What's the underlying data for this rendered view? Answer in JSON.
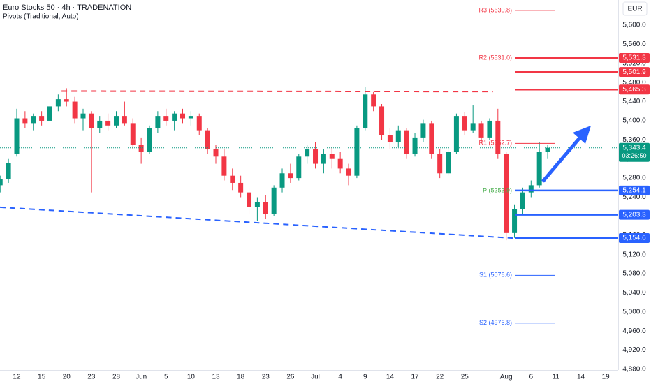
{
  "chart_data": {
    "type": "candlestick",
    "title": "Euro Stocks 50 · 4h · TRADENATION",
    "subtitle": "Pivots (Traditional, Auto)",
    "currency": "EUR",
    "up_color": "#089981",
    "down_color": "#f23645",
    "grid": false,
    "xlim": [
      -2.02,
      72.5
    ],
    "ylim": [
      4878.5,
      5652.6
    ],
    "xticks": [
      {
        "value": 0,
        "label": "12"
      },
      {
        "value": 3,
        "label": "15"
      },
      {
        "value": 6,
        "label": "20"
      },
      {
        "value": 9,
        "label": "23"
      },
      {
        "value": 12,
        "label": "28"
      },
      {
        "value": 15,
        "label": "Jun"
      },
      {
        "value": 18,
        "label": "5"
      },
      {
        "value": 21,
        "label": "10"
      },
      {
        "value": 24,
        "label": "13"
      },
      {
        "value": 27,
        "label": "18"
      },
      {
        "value": 30,
        "label": "23"
      },
      {
        "value": 33,
        "label": "26"
      },
      {
        "value": 36,
        "label": "Jul"
      },
      {
        "value": 39,
        "label": "4"
      },
      {
        "value": 42,
        "label": "9"
      },
      {
        "value": 45,
        "label": "14"
      },
      {
        "value": 48,
        "label": "17"
      },
      {
        "value": 51,
        "label": "22"
      },
      {
        "value": 54,
        "label": "25"
      },
      {
        "value": 59,
        "label": "Aug"
      },
      {
        "value": 62,
        "label": "6"
      },
      {
        "value": 65,
        "label": "11"
      },
      {
        "value": 68,
        "label": "14"
      },
      {
        "value": 71,
        "label": "19"
      }
    ],
    "yticks": [
      {
        "value": 5600,
        "label": "5,600.0"
      },
      {
        "value": 5560,
        "label": "5,560.0"
      },
      {
        "value": 5520,
        "label": "5,520.0"
      },
      {
        "value": 5480,
        "label": "5,480.0"
      },
      {
        "value": 5440,
        "label": "5,440.0"
      },
      {
        "value": 5400,
        "label": "5,400.0"
      },
      {
        "value": 5360,
        "label": "5,360.0"
      },
      {
        "value": 5320,
        "label": "5,320.0"
      },
      {
        "value": 5280,
        "label": "5,280.0"
      },
      {
        "value": 5240,
        "label": "5,240.0"
      },
      {
        "value": 5200,
        "label": "5,200.0"
      },
      {
        "value": 5160,
        "label": "5,160.0"
      },
      {
        "value": 5120,
        "label": "5,120.0"
      },
      {
        "value": 5080,
        "label": "5,080.0"
      },
      {
        "value": 5040,
        "label": "5,040.0"
      },
      {
        "value": 5000,
        "label": "5,000.0"
      },
      {
        "value": 4960,
        "label": "4,960.0"
      },
      {
        "value": 4920,
        "label": "4,920.0"
      },
      {
        "value": 4880,
        "label": "4,880.0"
      }
    ],
    "x": [
      -2,
      -1,
      0,
      1,
      2,
      3,
      4,
      5,
      6,
      7,
      8,
      9,
      10,
      11,
      12,
      13,
      14,
      15,
      16,
      17,
      18,
      19,
      20,
      21,
      22,
      23,
      24,
      25,
      26,
      27,
      28,
      29,
      30,
      31,
      32,
      33,
      34,
      35,
      36,
      37,
      38,
      39,
      40,
      41,
      42,
      43,
      44,
      45,
      46,
      47,
      48,
      49,
      50,
      51,
      52,
      53,
      54,
      55,
      56,
      57,
      58,
      59,
      60,
      61,
      62,
      63,
      64
    ],
    "open": [
      5265,
      5278,
      5330,
      5405,
      5395,
      5410,
      5400,
      5430,
      5445,
      5440,
      5405,
      5415,
      5385,
      5400,
      5390,
      5410,
      5395,
      5350,
      5335,
      5385,
      5410,
      5400,
      5415,
      5405,
      5410,
      5380,
      5340,
      5325,
      5285,
      5270,
      5250,
      5220,
      5230,
      5205,
      5260,
      5290,
      5280,
      5325,
      5340,
      5310,
      5330,
      5320,
      5300,
      5285,
      5385,
      5455,
      5430,
      5370,
      5355,
      5380,
      5330,
      5365,
      5395,
      5330,
      5290,
      5335,
      5410,
      5380,
      5395,
      5365,
      5400,
      5330,
      5165,
      5215,
      5250,
      5265,
      5335
    ],
    "high": [
      5285,
      5320,
      5425,
      5420,
      5415,
      5420,
      5440,
      5455,
      5468,
      5450,
      5425,
      5420,
      5410,
      5415,
      5420,
      5440,
      5405,
      5365,
      5390,
      5420,
      5425,
      5420,
      5425,
      5420,
      5415,
      5385,
      5350,
      5340,
      5300,
      5285,
      5260,
      5240,
      5245,
      5265,
      5300,
      5310,
      5330,
      5350,
      5355,
      5340,
      5345,
      5335,
      5310,
      5390,
      5470,
      5460,
      5435,
      5385,
      5390,
      5385,
      5375,
      5402,
      5400,
      5340,
      5340,
      5415,
      5418,
      5432,
      5400,
      5405,
      5425,
      5335,
      5225,
      5260,
      5275,
      5355,
      5350
    ],
    "low": [
      5250,
      5270,
      5325,
      5385,
      5380,
      5390,
      5395,
      5420,
      5430,
      5395,
      5380,
      5250,
      5375,
      5380,
      5385,
      5390,
      5340,
      5310,
      5330,
      5375,
      5390,
      5380,
      5395,
      5390,
      5370,
      5330,
      5310,
      5275,
      5255,
      5240,
      5205,
      5190,
      5195,
      5200,
      5250,
      5270,
      5275,
      5310,
      5300,
      5290,
      5300,
      5290,
      5265,
      5280,
      5380,
      5420,
      5360,
      5340,
      5345,
      5320,
      5325,
      5355,
      5320,
      5280,
      5285,
      5330,
      5370,
      5375,
      5355,
      5360,
      5320,
      5150,
      5155,
      5205,
      5240,
      5260,
      5320
    ],
    "close": [
      5278,
      5312,
      5405,
      5395,
      5410,
      5400,
      5430,
      5445,
      5440,
      5405,
      5415,
      5385,
      5400,
      5390,
      5410,
      5395,
      5350,
      5335,
      5385,
      5410,
      5400,
      5415,
      5405,
      5410,
      5380,
      5340,
      5325,
      5285,
      5270,
      5250,
      5220,
      5230,
      5205,
      5260,
      5290,
      5280,
      5325,
      5340,
      5310,
      5330,
      5320,
      5300,
      5285,
      5385,
      5455,
      5430,
      5370,
      5355,
      5380,
      5330,
      5365,
      5395,
      5330,
      5290,
      5335,
      5410,
      5380,
      5395,
      5365,
      5400,
      5330,
      5165,
      5215,
      5250,
      5265,
      5335,
      5343.4
    ],
    "trendlines": [
      {
        "x": [
          5.4,
          57.4
        ],
        "y": [
          5462,
          5461
        ],
        "color": "#f23645"
      },
      {
        "x": [
          -2.02,
          61.2
        ],
        "y": [
          5219,
          5153
        ],
        "color": "#2962ff"
      }
    ],
    "pivots": [
      {
        "label": "R3 (5630.8)",
        "value": 5630.8,
        "color": "#f23645"
      },
      {
        "label": "R2 (5531.0)",
        "value": 5531.0,
        "color": "#f23645"
      },
      {
        "label": "R1 (5352.7)",
        "value": 5352.7,
        "color": "#f23645"
      },
      {
        "label": "P (5253.9)",
        "value": 5253.9,
        "color": "#4caf50"
      },
      {
        "label": "S1 (5076.6)",
        "value": 5076.6,
        "color": "#2962ff"
      },
      {
        "label": "S2 (4976.8)",
        "value": 4976.8,
        "color": "#2962ff"
      }
    ],
    "levels": [
      {
        "label": "5,531.3",
        "value": 5531.3,
        "color": "#f23645"
      },
      {
        "label": "5,501.9",
        "value": 5501.9,
        "color": "#f23645"
      },
      {
        "label": "5,465.3",
        "value": 5465.3,
        "color": "#f23645"
      },
      {
        "label": "5,254.1",
        "value": 5254.1,
        "color": "#2962ff"
      },
      {
        "label": "5,203.3",
        "value": 5203.3,
        "color": "#2962ff"
      },
      {
        "label": "5,154.6",
        "value": 5154.6,
        "color": "#2962ff"
      }
    ],
    "last_price": {
      "value": 5343.4,
      "label": "5,343.4",
      "countdown": "03:26:50",
      "color": "#089981"
    }
  }
}
